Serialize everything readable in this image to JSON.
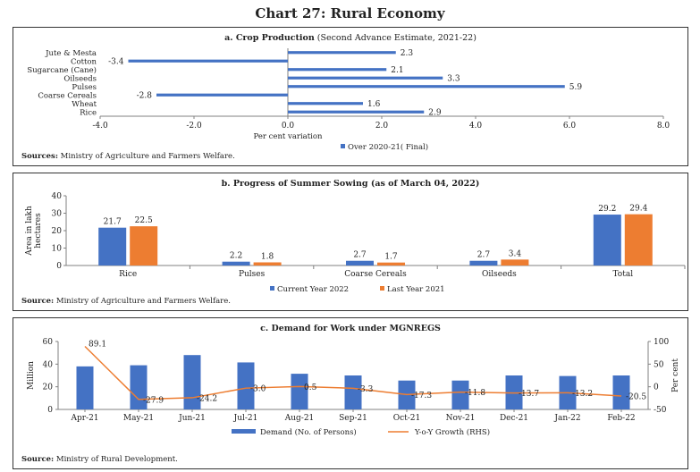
{
  "title": "Chart 27: Rural Economy",
  "panels": {
    "a": {
      "title_bold": "a. Crop Production",
      "title_rest": " (Second Advance Estimate, 2021-22)",
      "source_label": "Sources:",
      "source_text": " Ministry of Agriculture and Farmers Welfare."
    },
    "b": {
      "title": "b. Progress of Summer Sowing (as of March 04, 2022)",
      "source_label": "Source:",
      "source_text": " Ministry of Agriculture and Farmers Welfare."
    },
    "c": {
      "title": "c. Demand for Work under MGNREGS",
      "source_label": "Source:",
      "source_text": " Ministry of Rural Development."
    }
  },
  "colors": {
    "blue": "#4472C4",
    "orange": "#ED7D31",
    "axis": "#808080"
  },
  "chart_data": [
    {
      "type": "bar",
      "orientation": "horizontal",
      "title": "a. Crop Production (Second Advance Estimate, 2021-22)",
      "categories": [
        "Jute & Mesta",
        "Cotton",
        "Sugarcane (Cane)",
        "Oilseeds",
        "Pulses",
        "Coarse Cereals",
        "Wheat",
        "Rice"
      ],
      "series": [
        {
          "name": "Over 2020-21( Final)",
          "values": [
            2.3,
            -3.4,
            2.1,
            3.3,
            5.9,
            -2.8,
            1.6,
            2.9
          ]
        }
      ],
      "xlabel": "Per cent variation",
      "xlim": [
        -4.0,
        8.0
      ],
      "xticks": [
        "-4.0",
        "-2.0",
        "0.0",
        "2.0",
        "4.0",
        "6.0",
        "8.0"
      ],
      "legend": "bottom"
    },
    {
      "type": "bar",
      "title": "b. Progress of Summer Sowing (as of March 04, 2022)",
      "categories": [
        "Rice",
        "Pulses",
        "Coarse Cereals",
        "Oilseeds",
        "Total"
      ],
      "series": [
        {
          "name": "Current Year 2022",
          "values": [
            21.7,
            2.2,
            2.7,
            2.7,
            29.2
          ]
        },
        {
          "name": "Last Year 2021",
          "values": [
            22.5,
            1.8,
            1.7,
            3.4,
            29.4
          ]
        }
      ],
      "ylabel": "Area in lakh hectares",
      "ylim": [
        0,
        40
      ],
      "yticks": [
        "0",
        "10",
        "20",
        "30",
        "40"
      ],
      "legend": "bottom"
    },
    {
      "type": "bar",
      "title": "c. Demand for Work under MGNREGS",
      "categories": [
        "Apr-21",
        "May-21",
        "Jun-21",
        "Jul-21",
        "Aug-21",
        "Sep-21",
        "Oct-21",
        "Nov-21",
        "Dec-21",
        "Jan-22",
        "Feb-22"
      ],
      "series": [
        {
          "name": "Demand (No. of Persons)",
          "type": "bar",
          "axis": "left",
          "values": [
            38,
            39,
            48,
            41.5,
            31.5,
            30,
            25.5,
            25.5,
            30,
            29.5,
            30
          ]
        },
        {
          "name": "Y-o-Y Growth (RHS)",
          "type": "line",
          "axis": "right",
          "values": [
            89.1,
            -27.9,
            -24.2,
            -3.0,
            0.5,
            -3.3,
            -17.3,
            -11.8,
            -13.7,
            -13.2,
            -20.5
          ],
          "labels": [
            "89.1",
            "-27.9",
            "-24.2",
            "-3.0",
            "0.5",
            "-3.3",
            "-17.3",
            "-11.8",
            "-13.7",
            "-13.2",
            "-20.5"
          ]
        }
      ],
      "ylabel": "Million",
      "ylim": [
        0,
        60
      ],
      "yticks": [
        "0",
        "20",
        "40",
        "60"
      ],
      "y2label": "Per cent",
      "y2lim": [
        -50,
        100
      ],
      "y2ticks": [
        "-50",
        "0",
        "50",
        "100"
      ],
      "legend": "bottom"
    }
  ]
}
